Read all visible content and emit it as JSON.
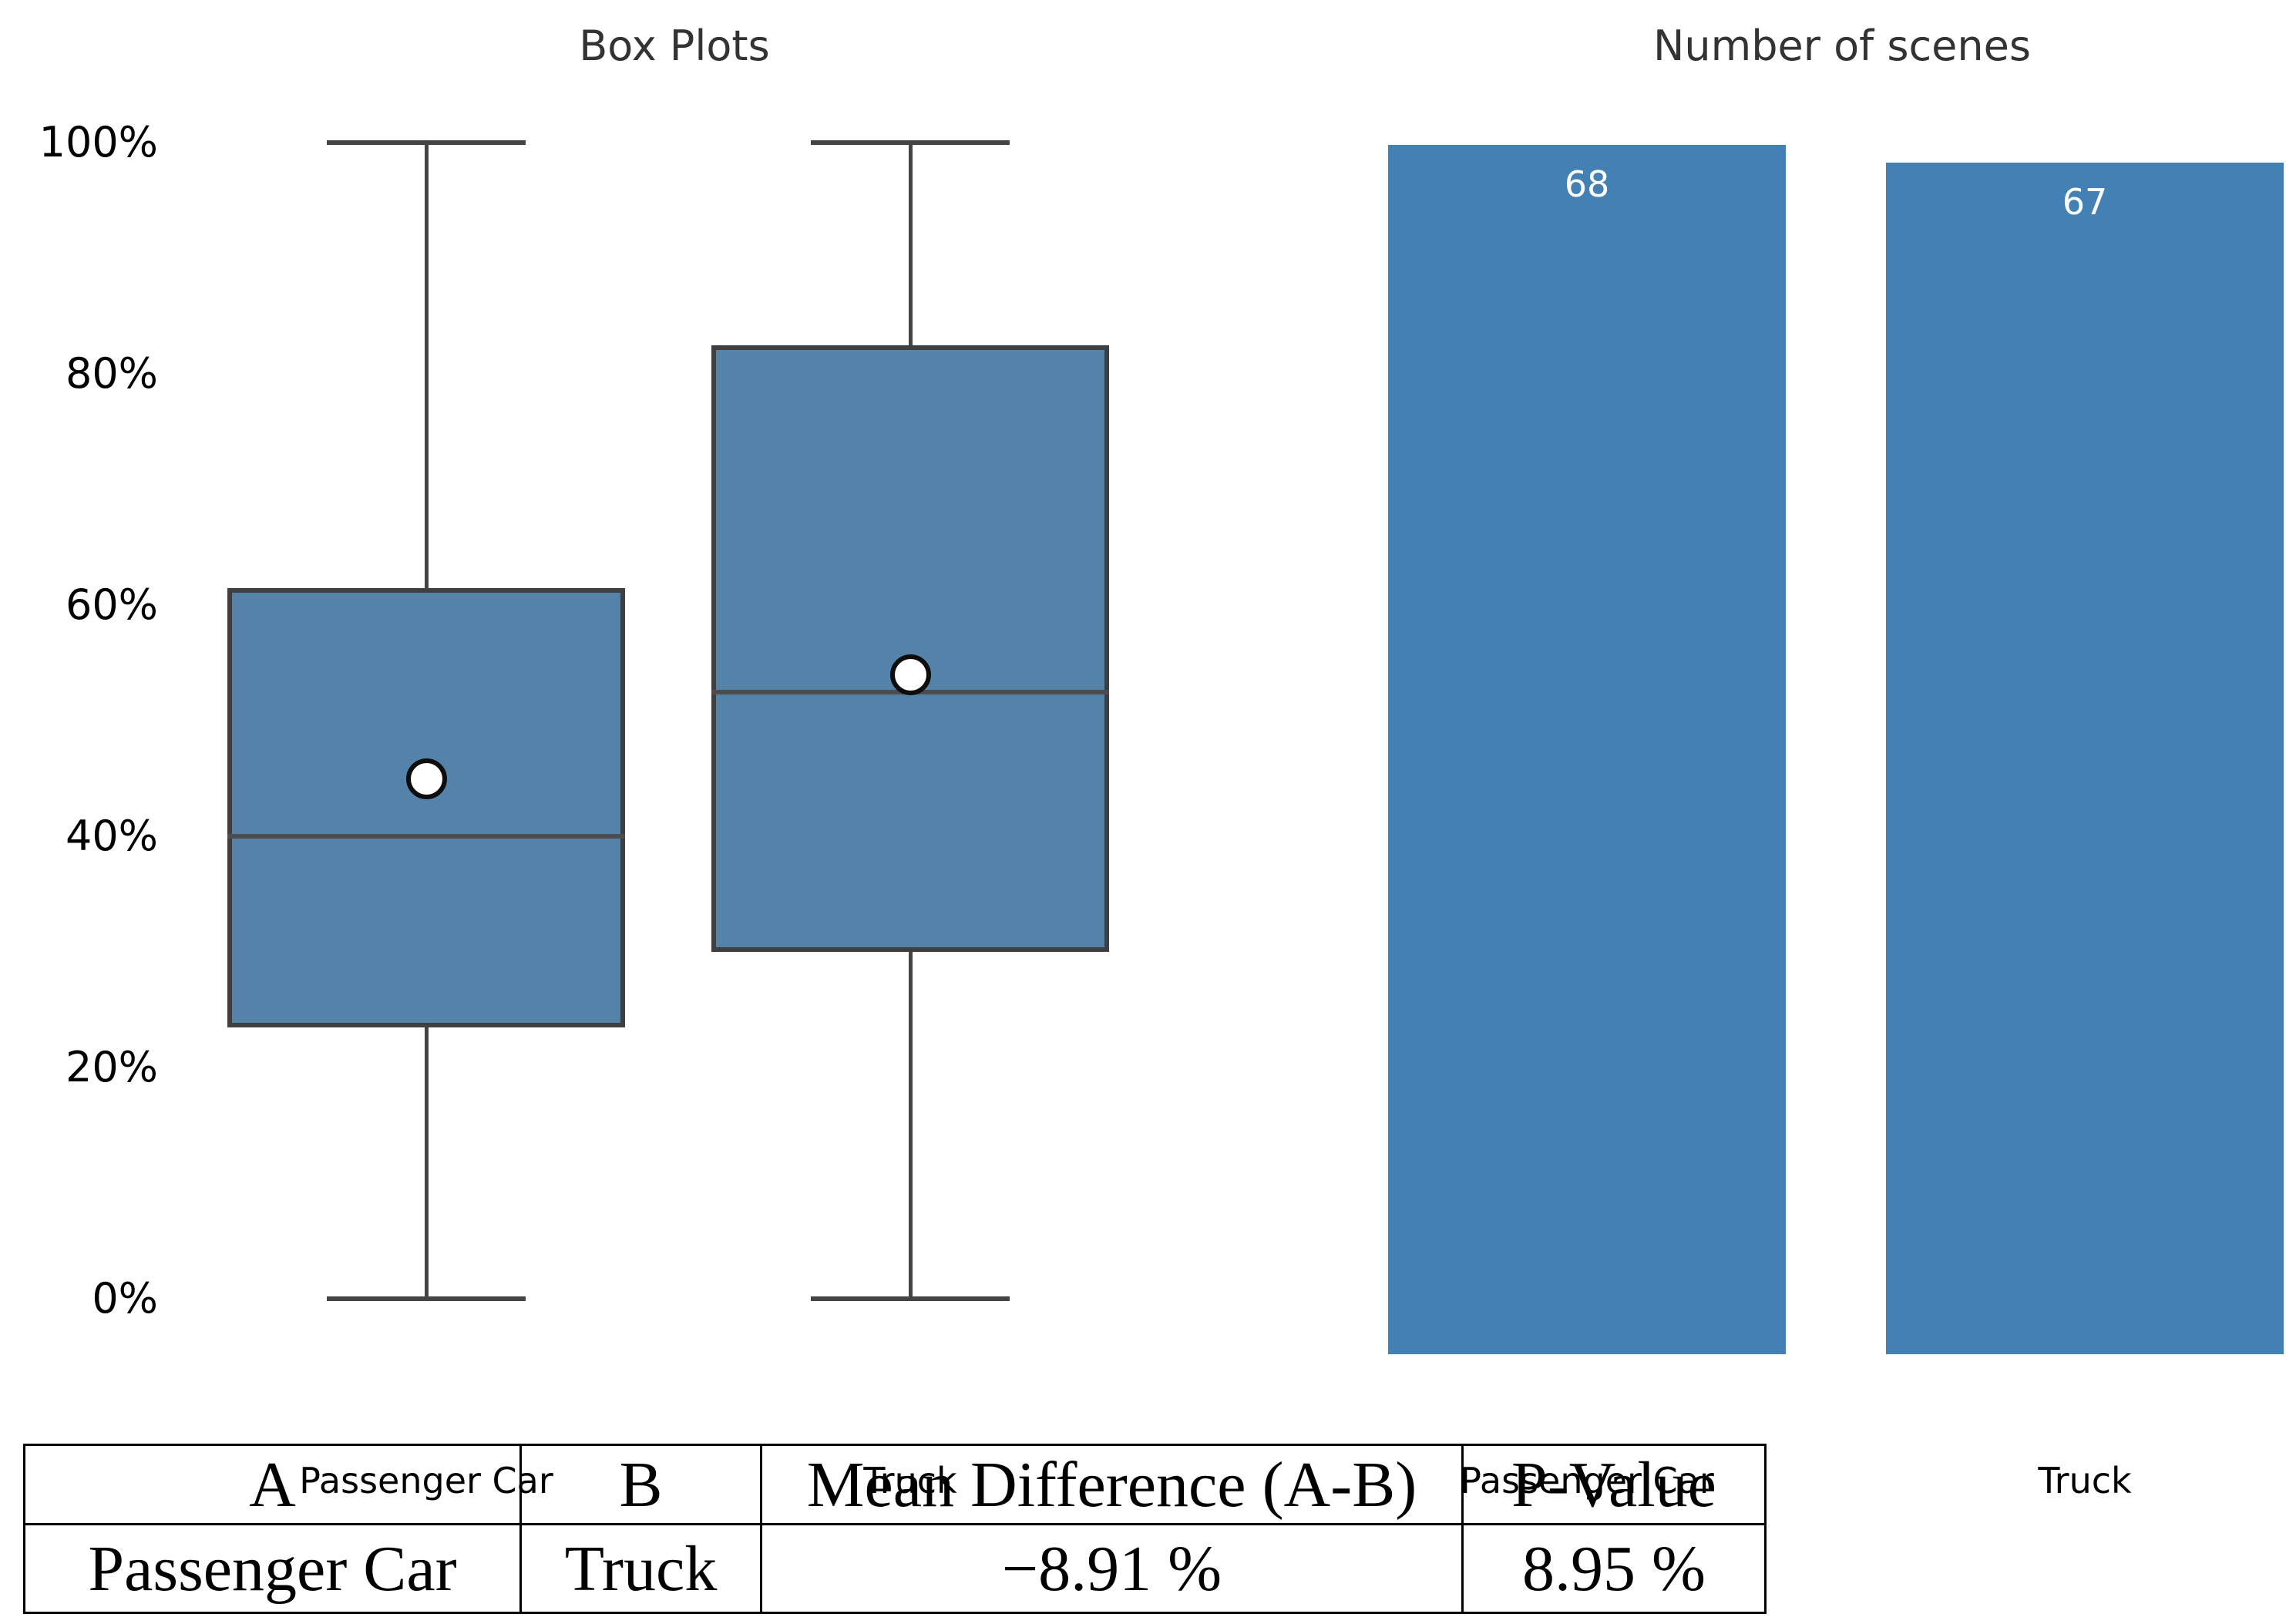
{
  "titles": {
    "boxplot_panel": "Box Plots",
    "bar_panel": "Number of scenes"
  },
  "y_axis": {
    "tick_labels": [
      "100%",
      "80%",
      "60%",
      "40%",
      "20%",
      "0%"
    ],
    "tick_values": [
      100,
      80,
      60,
      40,
      20,
      0
    ]
  },
  "chart_data": [
    {
      "type": "boxplot",
      "title": "Box Plots",
      "categories": [
        "Passenger Car",
        "Truck"
      ],
      "unit": "%",
      "ylim": [
        0,
        100
      ],
      "grid": false,
      "series": [
        {
          "name": "Passenger Car",
          "whisker_low": 0,
          "q1": 23.5,
          "median": 40,
          "mean": 45,
          "q3": 61.5,
          "whisker_high": 100
        },
        {
          "name": "Truck",
          "whisker_low": 0,
          "q1": 30,
          "median": 52.5,
          "mean": 54,
          "q3": 82.5,
          "whisker_high": 100
        }
      ]
    },
    {
      "type": "bar",
      "title": "Number of scenes",
      "categories": [
        "Passenger Car",
        "Truck"
      ],
      "values": [
        68,
        67
      ],
      "bar_labels": [
        "68",
        "67"
      ],
      "ylim": [
        0,
        68
      ],
      "grid": false
    }
  ],
  "table": {
    "headers": [
      "A",
      "B",
      "Mean Difference (A-B)",
      "P-Value"
    ],
    "rows": [
      [
        "Passenger Car",
        "Truck",
        "−8.91 %",
        "8.95 %"
      ]
    ]
  },
  "colors": {
    "box_fill": "#5482A8",
    "bar_fill": "#4381B5",
    "line": "#3f3f3f",
    "median_line": "#4d4d4d",
    "mean_marker_fill": "#ffffff",
    "mean_marker_edge": "#0d0d0d",
    "bar_label_text": "#ffffff",
    "text": "#000000",
    "title_text": "#333333"
  }
}
